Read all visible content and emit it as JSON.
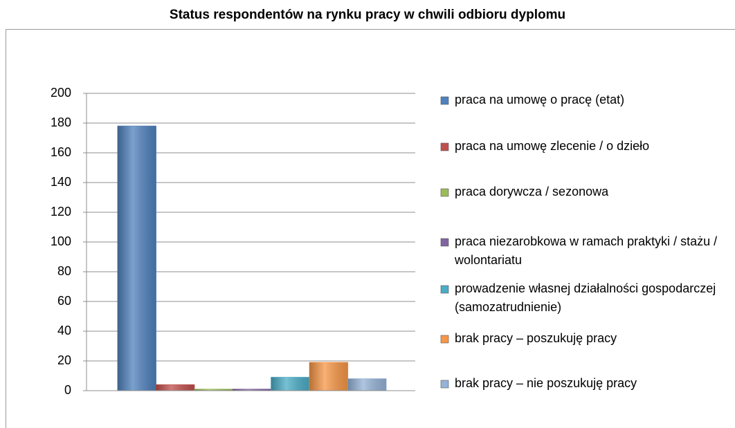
{
  "chart_data": {
    "type": "bar",
    "title": "Status respondentów na rynku pracy w chwili odbioru dyplomu",
    "categories": [
      null
    ],
    "series": [
      {
        "name": "praca na umowę o pracę (etat)",
        "color": "#4f81bd",
        "values": [
          178
        ]
      },
      {
        "name": "praca na umowę zlecenie / o dzieło",
        "color": "#c0504d",
        "values": [
          4
        ]
      },
      {
        "name": "praca dorywcza / sezonowa",
        "color": "#9bbb59",
        "values": [
          1
        ]
      },
      {
        "name": "praca niezarobkowa w ramach praktyki / stażu / wolontariatu",
        "color": "#8064a2",
        "values": [
          1
        ]
      },
      {
        "name": "prowadzenie własnej działalności gospodarczej (samozatrudnienie)",
        "color": "#4bacc6",
        "values": [
          9
        ]
      },
      {
        "name": "brak pracy – poszukuję pracy",
        "color": "#f79646",
        "values": [
          19
        ]
      },
      {
        "name": "brak pracy – nie poszukuję pracy",
        "color": "#95b3d7",
        "values": [
          8
        ]
      }
    ],
    "ylim": [
      0,
      200
    ],
    "yticks": [
      0,
      20,
      40,
      60,
      80,
      100,
      120,
      140,
      160,
      180,
      200
    ],
    "grid": true,
    "legend": "right"
  }
}
